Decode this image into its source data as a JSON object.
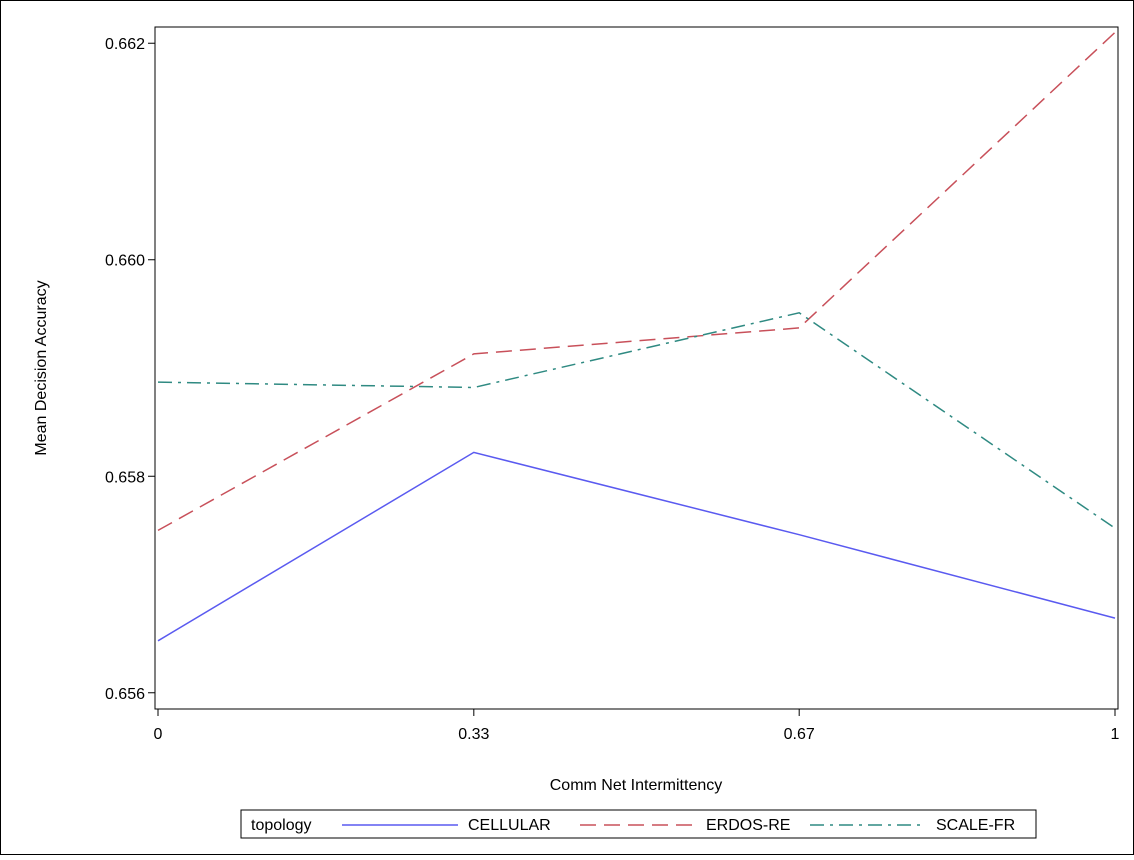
{
  "chart_data": {
    "type": "line",
    "title": "",
    "xlabel": "Comm Net Intermittency",
    "ylabel": "Mean Decision Accuracy",
    "x": [
      0,
      0.33,
      0.67,
      1
    ],
    "x_tick_labels": [
      "0",
      "0.33",
      "0.67",
      "1"
    ],
    "y_ticks": [
      0.656,
      0.658,
      0.66,
      0.662
    ],
    "y_tick_labels": [
      "0.656",
      "0.658",
      "0.660",
      "0.662"
    ],
    "ylim": [
      0.65585,
      0.66215
    ],
    "xlim": [
      0,
      1
    ],
    "grid": false,
    "legend": {
      "title": "topology",
      "placement": "bottom"
    },
    "series": [
      {
        "name": "CELLULAR",
        "values": [
          0.65648,
          0.65822,
          0.65746,
          0.65669
        ],
        "color": "#5a5af0",
        "dash": "solid"
      },
      {
        "name": "ERDOS-RE",
        "values": [
          0.6575,
          0.65913,
          0.65937,
          0.6621
        ],
        "color": "#c8505a",
        "dash": "dashed"
      },
      {
        "name": "SCALE-FR",
        "values": [
          0.65887,
          0.65882,
          0.65951,
          0.65752
        ],
        "color": "#2f8a82",
        "dash": "dashdot"
      }
    ]
  }
}
